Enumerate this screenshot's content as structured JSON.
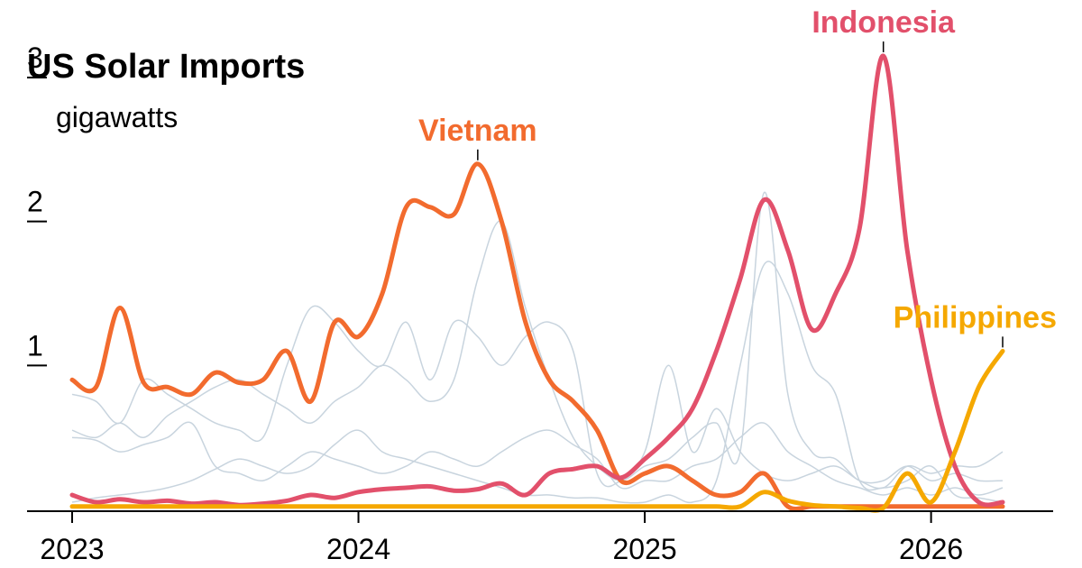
{
  "chart_data": {
    "type": "line",
    "title": "US Solar Imports",
    "unit_label": "gigawatts",
    "y_ticks": [
      1,
      2,
      3
    ],
    "x_ticks": [
      "2023",
      "2024",
      "2025",
      "2026"
    ],
    "xlim": [
      "2023-01",
      "2026-04"
    ],
    "ylim": [
      0,
      3.1
    ],
    "grid": false,
    "x": [
      "2023-01",
      "2023-02",
      "2023-03",
      "2023-04",
      "2023-05",
      "2023-06",
      "2023-07",
      "2023-08",
      "2023-09",
      "2023-10",
      "2023-11",
      "2023-12",
      "2024-01",
      "2024-02",
      "2024-03",
      "2024-04",
      "2024-05",
      "2024-06",
      "2024-07",
      "2024-08",
      "2024-09",
      "2024-10",
      "2024-11",
      "2024-12",
      "2025-01",
      "2025-02",
      "2025-03",
      "2025-04",
      "2025-05",
      "2025-06",
      "2025-07",
      "2025-08",
      "2025-09",
      "2025-10",
      "2025-11",
      "2025-12",
      "2026-01",
      "2026-02",
      "2026-03",
      "2026-04"
    ],
    "highlight_series": [
      {
        "name": "Vietnam",
        "color": "#f26b2e",
        "values": [
          0.9,
          0.85,
          1.4,
          0.88,
          0.85,
          0.8,
          0.95,
          0.88,
          0.9,
          1.1,
          0.75,
          1.3,
          1.2,
          1.5,
          2.1,
          2.1,
          2.05,
          2.4,
          2.0,
          1.3,
          0.9,
          0.75,
          0.55,
          0.2,
          0.25,
          0.3,
          0.2,
          0.1,
          0.12,
          0.25,
          0.02,
          0.02,
          0.02,
          0.02,
          0.02,
          0.02,
          0.02,
          0.02,
          0.02,
          0.02
        ]
      },
      {
        "name": "Indonesia",
        "color": "#e2506b",
        "values": [
          0.1,
          0.05,
          0.07,
          0.05,
          0.06,
          0.04,
          0.05,
          0.03,
          0.04,
          0.06,
          0.1,
          0.08,
          0.12,
          0.14,
          0.15,
          0.16,
          0.13,
          0.14,
          0.18,
          0.1,
          0.25,
          0.28,
          0.3,
          0.22,
          0.35,
          0.5,
          0.7,
          1.1,
          1.6,
          2.15,
          1.8,
          1.25,
          1.5,
          1.95,
          3.15,
          1.8,
          0.9,
          0.3,
          0.05,
          0.05
        ]
      },
      {
        "name": "Philippines",
        "color": "#f5a800",
        "values": [
          0.02,
          0.02,
          0.02,
          0.02,
          0.02,
          0.02,
          0.02,
          0.02,
          0.02,
          0.02,
          0.02,
          0.02,
          0.02,
          0.02,
          0.02,
          0.02,
          0.02,
          0.02,
          0.02,
          0.02,
          0.02,
          0.02,
          0.02,
          0.02,
          0.02,
          0.02,
          0.02,
          0.02,
          0.02,
          0.12,
          0.06,
          0.03,
          0.02,
          0.01,
          0.01,
          0.25,
          0.05,
          0.4,
          0.85,
          1.1
        ]
      }
    ],
    "background_series": [
      {
        "color": "#c8d4de",
        "values": [
          0.8,
          0.75,
          0.6,
          0.9,
          0.8,
          0.7,
          0.6,
          0.55,
          0.5,
          1.0,
          1.4,
          1.3,
          1.1,
          1.0,
          1.3,
          0.9,
          1.3,
          1.2,
          1.0,
          1.2,
          1.3,
          1.1,
          0.25,
          0.2,
          0.4,
          1.0,
          0.4,
          0.7,
          0.4,
          0.25,
          0.2,
          0.25,
          0.3,
          0.2,
          0.15,
          0.3,
          0.25,
          0.3,
          0.3,
          0.4
        ]
      },
      {
        "color": "#c8d4de",
        "values": [
          0.55,
          0.5,
          0.6,
          0.5,
          0.65,
          0.75,
          0.85,
          0.9,
          0.8,
          0.7,
          0.6,
          0.75,
          0.85,
          1.0,
          0.9,
          0.75,
          0.9,
          1.6,
          2.0,
          1.4,
          0.9,
          0.5,
          0.3,
          0.2,
          0.3,
          0.35,
          0.5,
          0.6,
          0.4,
          2.2,
          0.8,
          0.4,
          0.35,
          0.2,
          0.2,
          0.3,
          0.2,
          0.25,
          0.2,
          0.2
        ]
      },
      {
        "color": "#c8d4de",
        "values": [
          0.5,
          0.48,
          0.4,
          0.45,
          0.5,
          0.6,
          0.3,
          0.25,
          0.2,
          0.3,
          0.4,
          0.35,
          0.3,
          0.25,
          0.3,
          0.4,
          0.35,
          0.3,
          0.4,
          0.5,
          0.55,
          0.45,
          0.35,
          0.15,
          0.2,
          0.2,
          0.3,
          0.35,
          0.5,
          0.6,
          0.4,
          0.3,
          0.2,
          0.15,
          0.1,
          0.15,
          0.1,
          0.15,
          0.1,
          0.15
        ]
      },
      {
        "color": "#c8d4de",
        "values": [
          0.05,
          0.08,
          0.1,
          0.12,
          0.15,
          0.2,
          0.28,
          0.35,
          0.3,
          0.25,
          0.3,
          0.45,
          0.55,
          0.4,
          0.35,
          0.3,
          0.25,
          0.2,
          0.15,
          0.1,
          0.1,
          0.08,
          0.08,
          0.05,
          0.05,
          0.1,
          0.05,
          0.2,
          1.0,
          1.7,
          1.5,
          1.0,
          0.8,
          0.2,
          0.15,
          0.2,
          0.3,
          0.1,
          0.08,
          0.05
        ]
      }
    ],
    "axis_color": "#000000"
  }
}
